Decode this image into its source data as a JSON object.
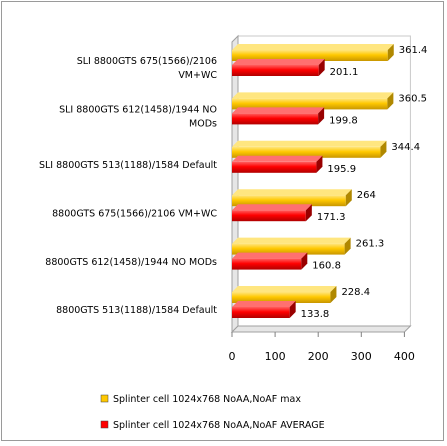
{
  "chart_data": {
    "type": "bar",
    "orientation": "horizontal",
    "categories": [
      [
        "SLI 8800GTS 675(1566)/2106",
        "VM+WC"
      ],
      [
        "SLI 8800GTS 612(1458)/1944 NO",
        "MODs"
      ],
      [
        "SLI 8800GTS 513(1188)/1584 Default"
      ],
      [
        "8800GTS 675(1566)/2106 VM+WC"
      ],
      [
        "8800GTS 612(1458)/1944 NO MODs"
      ],
      [
        "8800GTS 513(1188)/1584 Default"
      ]
    ],
    "series": [
      {
        "name": "Splinter cell 1024x768 NoAA,NoAF max",
        "color": "#FFC800",
        "values": [
          361.4,
          360.5,
          344.4,
          264,
          261.3,
          228.4
        ],
        "labels": [
          "361.4",
          "360.5",
          "344.4",
          "264",
          "261.3",
          "228.4"
        ]
      },
      {
        "name": "Splinter cell 1024x768 NoAA,NoAF AVERAGE",
        "color": "#FF0000",
        "values": [
          201.1,
          199.8,
          195.9,
          171.3,
          160.8,
          133.8
        ],
        "labels": [
          "201.1",
          "199.8",
          "195.9",
          "171.3",
          "160.8",
          "133.8"
        ]
      }
    ],
    "xlim": [
      0,
      400
    ],
    "xticks": [
      "0",
      "100",
      "200",
      "300",
      "400"
    ],
    "grid": false,
    "legend_position": "bottom"
  }
}
